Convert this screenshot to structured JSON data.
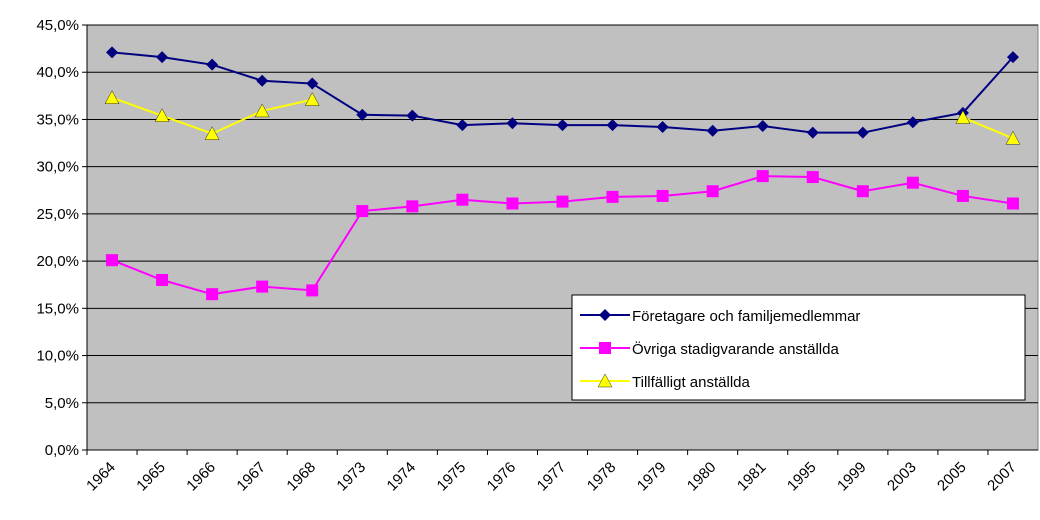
{
  "chart_data": {
    "type": "line",
    "categories": [
      "1964",
      "1965",
      "1966",
      "1967",
      "1968",
      "1973",
      "1974",
      "1975",
      "1976",
      "1977",
      "1978",
      "1979",
      "1980",
      "1981",
      "1995",
      "1999",
      "2003",
      "2005",
      "2007"
    ],
    "series": [
      {
        "name": "Företagare och familjemedlemmar",
        "color": "#000080",
        "marker": "diamond",
        "values": [
          42.1,
          41.6,
          40.8,
          39.1,
          38.8,
          35.5,
          35.4,
          34.4,
          34.6,
          34.4,
          34.4,
          34.2,
          33.8,
          34.3,
          33.6,
          33.6,
          34.7,
          35.7,
          41.6
        ]
      },
      {
        "name": "Övriga stadigvarande anställda",
        "color": "#ff00ff",
        "marker": "square",
        "values": [
          20.1,
          18.0,
          16.5,
          17.3,
          16.9,
          25.3,
          25.8,
          26.5,
          26.1,
          26.3,
          26.8,
          26.9,
          27.4,
          29.0,
          28.9,
          27.4,
          28.3,
          26.9,
          26.1
        ]
      },
      {
        "name": "Tillfälligt anställda",
        "color": "#ffff00",
        "marker": "triangle",
        "values": [
          37.3,
          35.4,
          33.5,
          35.9,
          37.1,
          null,
          null,
          null,
          null,
          null,
          null,
          null,
          null,
          null,
          null,
          null,
          null,
          35.2,
          33.0
        ]
      }
    ],
    "ylim": [
      0,
      45
    ],
    "yticks": [
      {
        "value": 0,
        "label": "0,0%"
      },
      {
        "value": 5,
        "label": "5,0%"
      },
      {
        "value": 10,
        "label": "10,0%"
      },
      {
        "value": 15,
        "label": "15,0%"
      },
      {
        "value": 20,
        "label": "20,0%"
      },
      {
        "value": 25,
        "label": "25,0%"
      },
      {
        "value": 30,
        "label": "30,0%"
      },
      {
        "value": 35,
        "label": "35,0%"
      },
      {
        "value": 40,
        "label": "40,0%"
      },
      {
        "value": 45,
        "label": "45,0%"
      }
    ],
    "grid": true,
    "plot_background": "#c0c0c0",
    "legend": "lower right"
  }
}
